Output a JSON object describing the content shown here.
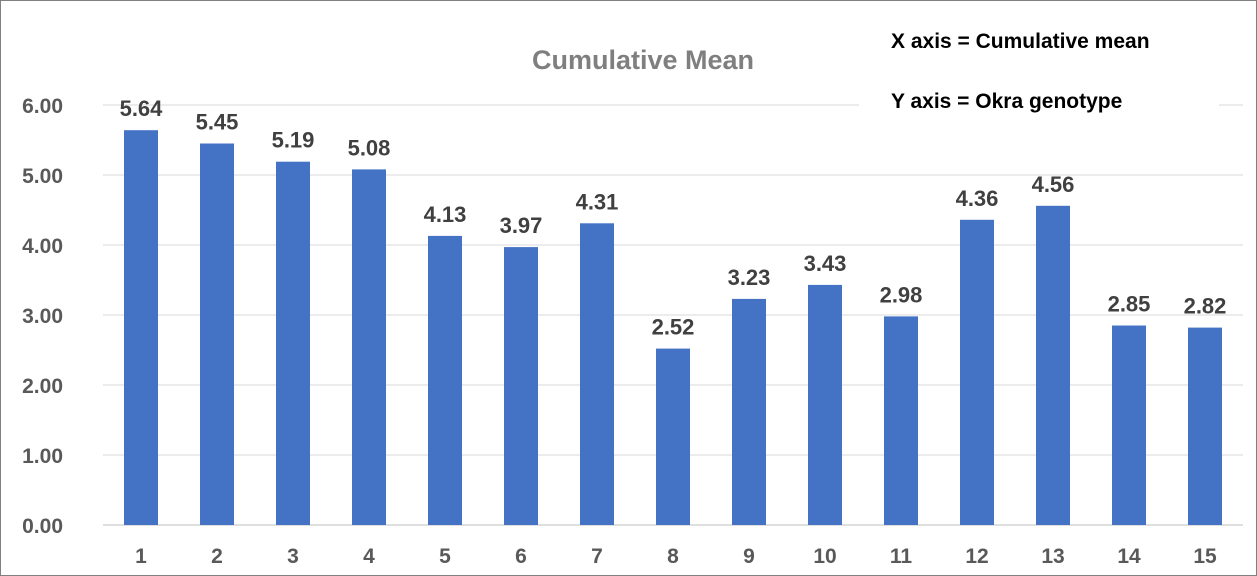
{
  "chart_data": {
    "type": "bar",
    "title": "Cumulative Mean",
    "xlabel": "",
    "ylabel": "",
    "categories": [
      "1",
      "2",
      "3",
      "4",
      "5",
      "6",
      "7",
      "8",
      "9",
      "10",
      "11",
      "12",
      "13",
      "14",
      "15"
    ],
    "values": [
      5.64,
      5.45,
      5.19,
      5.08,
      4.13,
      3.97,
      4.31,
      2.52,
      3.23,
      3.43,
      2.98,
      4.36,
      4.56,
      2.85,
      2.82
    ],
    "data_labels": [
      "5.64",
      "5.45",
      "5.19",
      "5.08",
      "4.13",
      "3.97",
      "4.31",
      "2.52",
      "3.23",
      "3.43",
      "2.98",
      "4.36",
      "4.56",
      "2.85",
      "2.82"
    ],
    "ylim": [
      0,
      6
    ],
    "yticks": [
      "0.00",
      "1.00",
      "2.00",
      "3.00",
      "4.00",
      "5.00",
      "6.00"
    ],
    "grid": true,
    "legend": "none",
    "bar_color": "#4472c4",
    "annotations": [
      "X axis = Cumulative mean",
      "Y axis = Okra genotype"
    ]
  }
}
